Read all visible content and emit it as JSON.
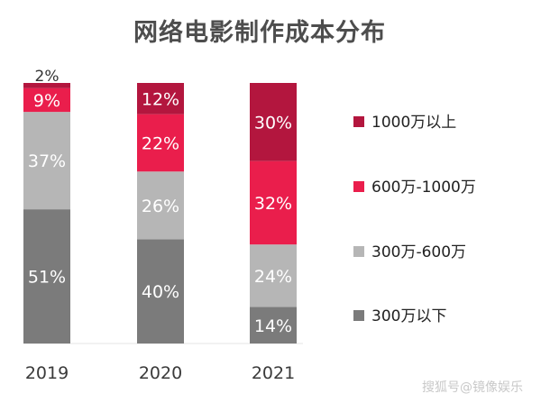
{
  "chart_data": {
    "type": "bar",
    "stacked": true,
    "title": "网络电影制作成本分布",
    "categories": [
      "2019",
      "2020",
      "2021"
    ],
    "series": [
      {
        "name": "300万以下",
        "values": [
          51,
          40,
          14
        ],
        "labels": [
          "51%",
          "40%",
          "14%"
        ],
        "color": "#7b7b7b"
      },
      {
        "name": "300万-600万",
        "values": [
          37,
          26,
          24
        ],
        "labels": [
          "37%",
          "26%",
          "24%"
        ],
        "color": "#b6b6b6"
      },
      {
        "name": "600万-1000万",
        "values": [
          9,
          22,
          32
        ],
        "labels": [
          "9%",
          "22%",
          "32%"
        ],
        "color": "#ea1e4c"
      },
      {
        "name": "1000万以上",
        "values": [
          2,
          12,
          30
        ],
        "labels": [
          "2%",
          "12%",
          "30%"
        ],
        "color": "#b3163e"
      }
    ],
    "ylim": [
      0,
      100
    ],
    "legend_position": "right",
    "grid": false
  },
  "watermark": "搜狐号@镜像娱乐"
}
